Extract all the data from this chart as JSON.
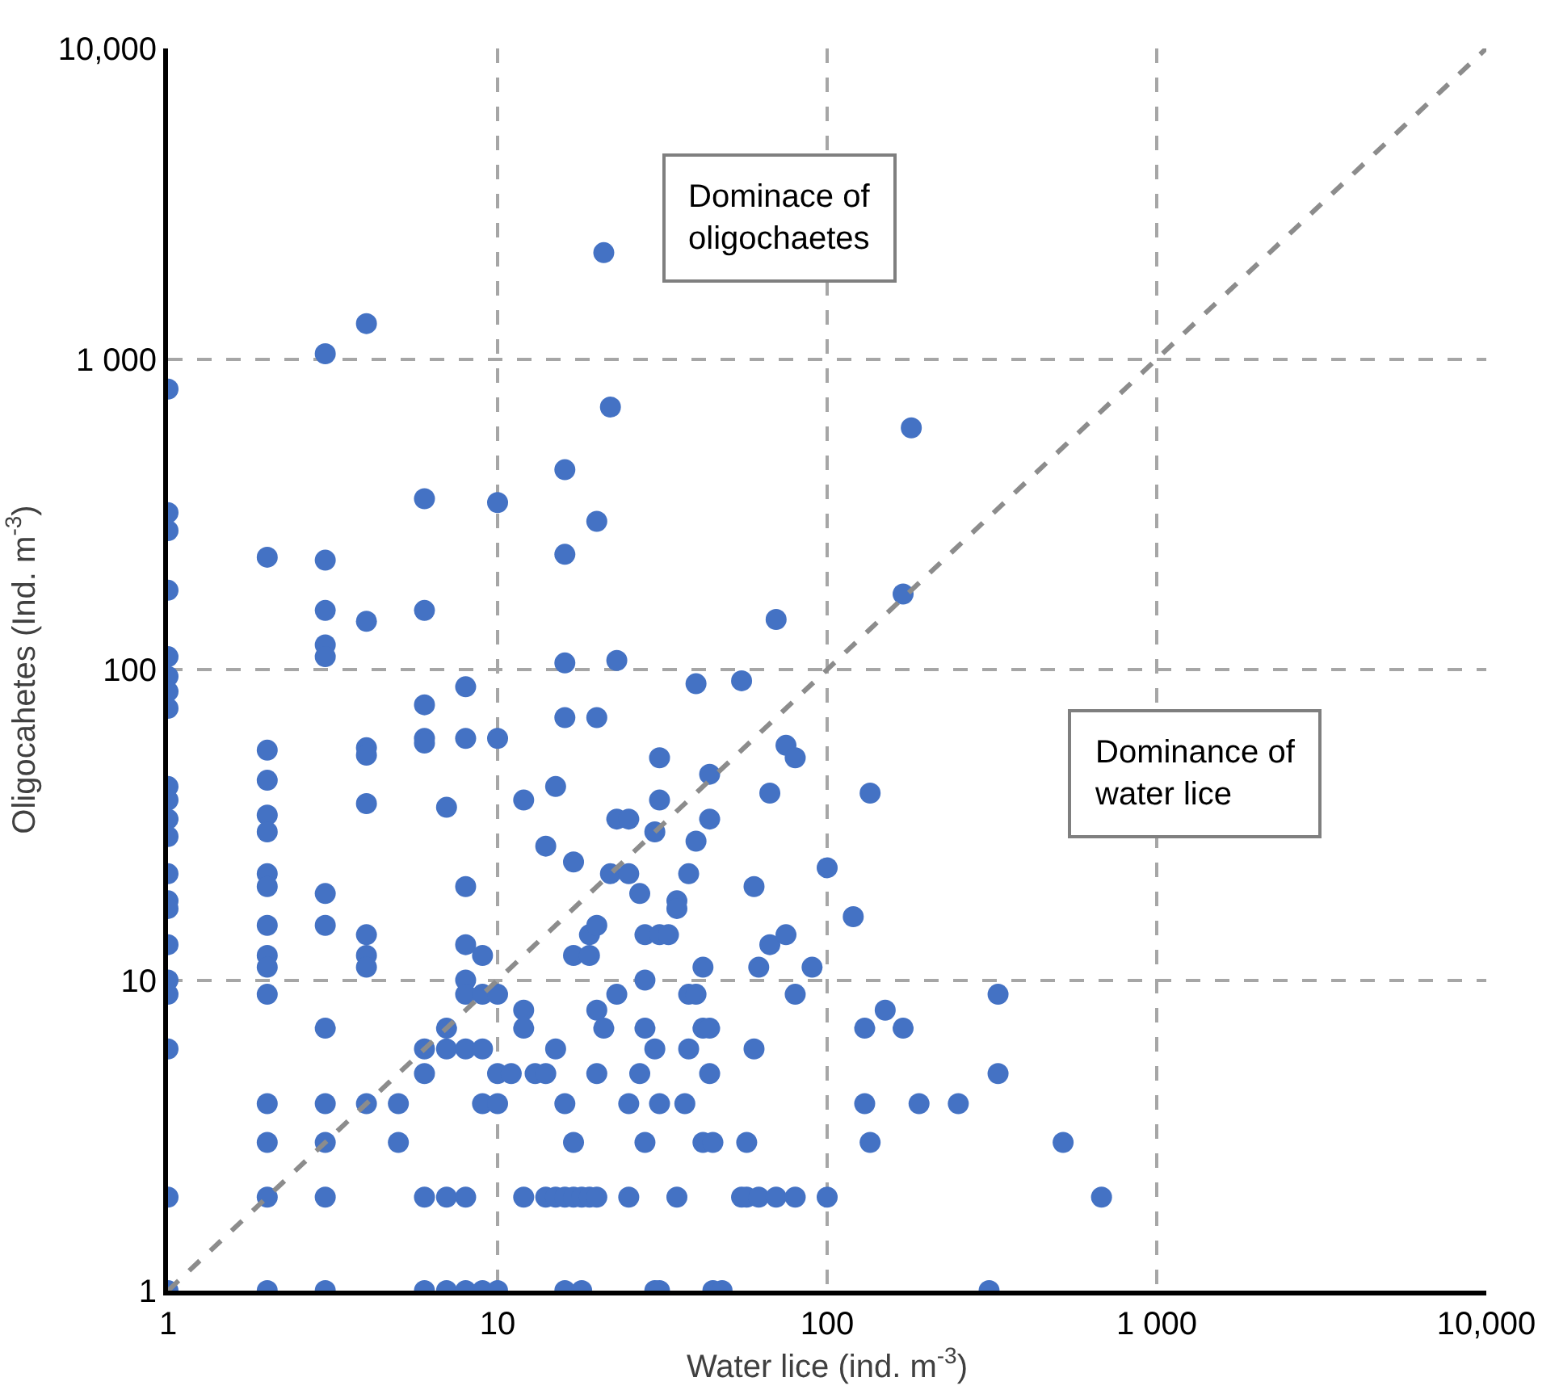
{
  "chart_data": {
    "type": "scatter",
    "xlabel": "Water lice (ind. m$^{-3}$)",
    "ylabel": "Oligocahetes (Ind. m$^{-3}$)",
    "log": "xy",
    "grid": true,
    "marker": "circle",
    "xlim": [
      1,
      10000
    ],
    "ylim": [
      1,
      10000
    ],
    "xticks": [
      1,
      10,
      100,
      {
        "value": 1000,
        "label": "1 000"
      },
      {
        "value": 10000,
        "label": "10,000"
      }
    ],
    "yticks": [
      1,
      10,
      100,
      {
        "value": 1000,
        "label": "1 000"
      },
      {
        "value": 10000,
        "label": "10,000"
      }
    ],
    "annotations": [
      "Dominace of oligochaetes",
      "Dominance of water lice"
    ],
    "series": [
      {
        "type": "scatter",
        "color": "#4472c4",
        "x": [
          1,
          1,
          1,
          1,
          1,
          1,
          1,
          1,
          1,
          1,
          1,
          1,
          1,
          1,
          1,
          1,
          1,
          1,
          1,
          1,
          1,
          2,
          2,
          2,
          2,
          2,
          2,
          2,
          2,
          2,
          2,
          2,
          2,
          2,
          2,
          2,
          3,
          3,
          3,
          3,
          3,
          3,
          3,
          3,
          3,
          3,
          3,
          3,
          4,
          4,
          4,
          4,
          4,
          4,
          4,
          4,
          4,
          5,
          5,
          6,
          6,
          6,
          6,
          6,
          6,
          6,
          6,
          6,
          7,
          7,
          7,
          7,
          7,
          8,
          8,
          8,
          8,
          8,
          8,
          8,
          8,
          8,
          9,
          9,
          9,
          9,
          9,
          10,
          10,
          10,
          10,
          10,
          10,
          11,
          12,
          12,
          12,
          12,
          13,
          14,
          14,
          14,
          15,
          15,
          15,
          16,
          16,
          16,
          16,
          16,
          16,
          16,
          17,
          17,
          17,
          17,
          18,
          18,
          19,
          19,
          19,
          20,
          20,
          20,
          20,
          20,
          20,
          21,
          21,
          22,
          22,
          23,
          23,
          23,
          25,
          25,
          25,
          25,
          27,
          27,
          28,
          28,
          28,
          28,
          30,
          30,
          30,
          31,
          31,
          31,
          31,
          31,
          33,
          35,
          35,
          35,
          37,
          38,
          38,
          38,
          40,
          40,
          40,
          42,
          42,
          42,
          44,
          44,
          44,
          44,
          45,
          45,
          48,
          55,
          55,
          57,
          57,
          60,
          60,
          62,
          62,
          67,
          67,
          70,
          70,
          75,
          75,
          80,
          80,
          80,
          90,
          100,
          100,
          120,
          130,
          130,
          135,
          135,
          150,
          170,
          170,
          180,
          190,
          250,
          310,
          330,
          330,
          520,
          680
        ],
        "values": [
          800,
          320,
          280,
          180,
          110,
          95,
          85,
          75,
          42,
          38,
          33,
          29,
          22,
          18,
          17,
          13,
          10,
          9,
          6,
          2,
          1,
          230,
          55,
          44,
          34,
          30,
          22,
          20,
          15,
          12,
          11,
          9,
          4,
          3,
          2,
          1,
          1040,
          225,
          155,
          120,
          110,
          19,
          15,
          7,
          4,
          3,
          2,
          1,
          1300,
          143,
          56,
          53,
          37,
          14,
          12,
          11,
          4,
          3,
          4,
          355,
          155,
          77,
          60,
          58,
          6,
          5,
          2,
          1,
          36,
          7,
          6,
          2,
          1,
          88,
          60,
          20,
          13,
          10,
          9,
          6,
          2,
          1,
          12,
          9,
          6,
          4,
          1,
          345,
          60,
          9,
          5,
          4,
          1,
          5,
          38,
          8,
          7,
          2,
          5,
          27,
          5,
          2,
          42,
          6,
          2,
          440,
          235,
          105,
          70,
          4,
          2,
          1,
          24,
          12,
          3,
          2,
          2,
          1,
          14,
          12,
          2,
          300,
          70,
          15,
          8,
          5,
          2,
          2200,
          7,
          700,
          22,
          107,
          33,
          9,
          33,
          22,
          4,
          2,
          19,
          5,
          14,
          10,
          7,
          3,
          30,
          6,
          1,
          52,
          38,
          14,
          4,
          1,
          14,
          18,
          17,
          2,
          4,
          22,
          9,
          6,
          90,
          28,
          9,
          11,
          7,
          3,
          46,
          33,
          7,
          5,
          3,
          1,
          1,
          92,
          2,
          3,
          2,
          20,
          6,
          11,
          2,
          40,
          13,
          145,
          2,
          57,
          14,
          52,
          9,
          2,
          11,
          23,
          2,
          16,
          7,
          4,
          40,
          3,
          8,
          175,
          7,
          600,
          4,
          4,
          1,
          9,
          5,
          3,
          2
        ]
      },
      {
        "type": "line",
        "color": "#8c8c8c",
        "line_style": "dashed",
        "marker": "none",
        "x": [
          1,
          10000
        ],
        "values": [
          1,
          10000
        ]
      }
    ]
  }
}
